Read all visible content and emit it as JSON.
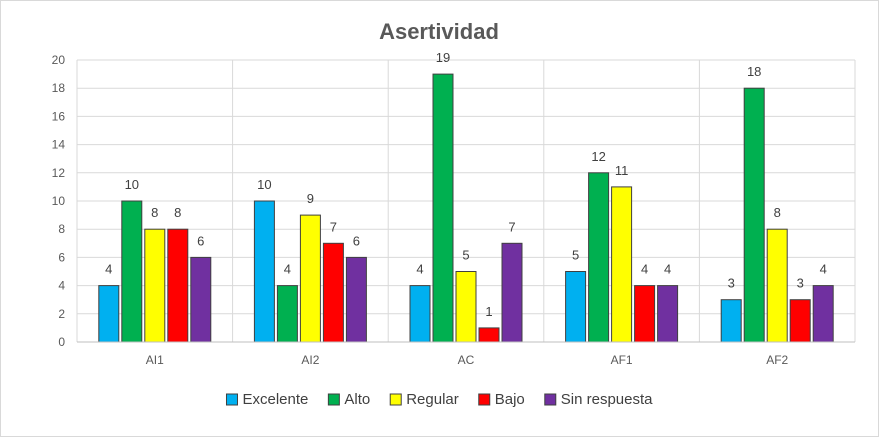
{
  "chart_data": {
    "type": "bar",
    "title": "Asertividad",
    "categories": [
      "AI1",
      "AI2",
      "AC",
      "AF1",
      "AF2"
    ],
    "series": [
      {
        "name": "Excelente",
        "color": "#00B0F0",
        "values": [
          4,
          10,
          4,
          5,
          3
        ]
      },
      {
        "name": "Alto",
        "color": "#00B050",
        "values": [
          10,
          4,
          19,
          12,
          18
        ]
      },
      {
        "name": "Regular",
        "color": "#FFFF00",
        "values": [
          8,
          9,
          5,
          11,
          8
        ]
      },
      {
        "name": "Bajo",
        "color": "#FF0000",
        "values": [
          8,
          7,
          1,
          4,
          3
        ]
      },
      {
        "name": "Sin respuesta",
        "color": "#7030A0",
        "values": [
          6,
          6,
          7,
          4,
          4
        ]
      }
    ],
    "y_ticks": [
      "0",
      "2",
      "4",
      "6",
      "8",
      "10",
      "12",
      "14",
      "16",
      "18",
      "20"
    ],
    "ylim": [
      0,
      20
    ],
    "xlabel": "",
    "ylabel": "",
    "legend_position": "bottom",
    "grid": true
  }
}
